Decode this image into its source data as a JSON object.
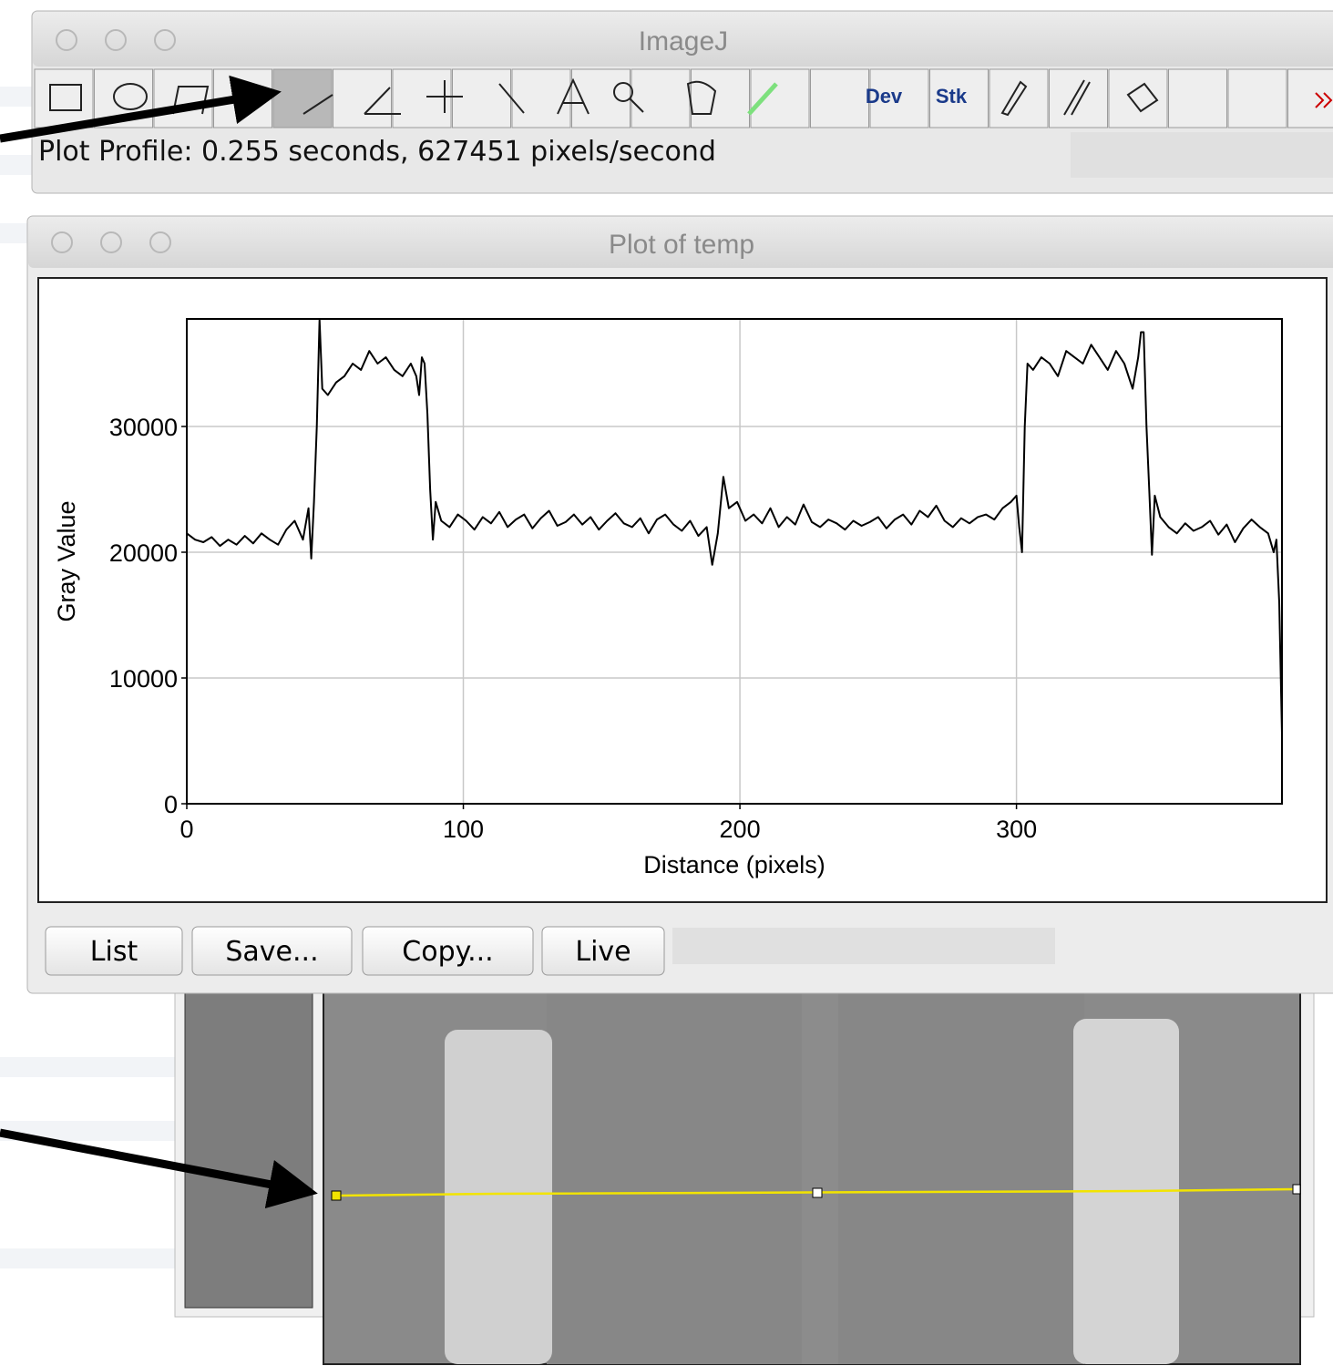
{
  "main_window": {
    "title": "ImageJ",
    "toolbar": {
      "labels": [
        "Dev",
        "Stk"
      ]
    },
    "status": "Plot Profile: 0.255 seconds, 627451 pixels/second"
  },
  "plot_window": {
    "title": "Plot of temp",
    "buttons": [
      "List",
      "Save...",
      "Copy...",
      "Live"
    ]
  },
  "chart_data": {
    "type": "line",
    "xlabel": "Distance (pixels)",
    "ylabel": "Gray Value",
    "color": "#000000",
    "grid": true,
    "xlim": [
      0,
      396
    ],
    "ylim": [
      0,
      38550
    ],
    "xticks": [
      0,
      100,
      200,
      300
    ],
    "yticks": [
      0,
      10000,
      20000,
      30000
    ],
    "x": [
      0,
      3,
      6,
      9,
      12,
      15,
      18,
      21,
      24,
      27,
      30,
      33,
      36,
      39,
      42,
      44,
      45,
      46,
      47,
      48,
      49,
      51,
      54,
      57,
      60,
      63,
      66,
      69,
      72,
      75,
      78,
      81,
      83,
      84,
      85,
      86,
      87,
      88,
      89,
      90,
      92,
      95,
      98,
      101,
      104,
      107,
      110,
      113,
      116,
      119,
      122,
      125,
      128,
      131,
      134,
      137,
      140,
      143,
      146,
      149,
      152,
      155,
      158,
      161,
      164,
      167,
      170,
      173,
      176,
      179,
      182,
      185,
      188,
      190,
      192,
      194,
      196,
      199,
      202,
      205,
      208,
      211,
      214,
      217,
      220,
      223,
      226,
      229,
      232,
      235,
      238,
      241,
      244,
      247,
      250,
      253,
      256,
      259,
      262,
      265,
      268,
      271,
      274,
      277,
      280,
      283,
      286,
      289,
      292,
      295,
      298,
      300,
      301,
      302,
      303,
      304,
      306,
      309,
      312,
      315,
      318,
      321,
      324,
      327,
      330,
      333,
      336,
      339,
      342,
      344,
      345,
      346,
      347,
      348,
      349,
      350,
      352,
      355,
      358,
      361,
      364,
      367,
      370,
      373,
      376,
      379,
      382,
      385,
      388,
      391,
      393,
      394,
      395,
      396
    ],
    "values": [
      21500,
      21000,
      20800,
      21200,
      20500,
      21000,
      20600,
      21300,
      20700,
      21500,
      21000,
      20600,
      21800,
      22500,
      21000,
      23500,
      19500,
      24000,
      30000,
      38500,
      33000,
      32500,
      33500,
      34000,
      35000,
      34500,
      36000,
      35000,
      35500,
      34500,
      34000,
      35000,
      34000,
      32500,
      35500,
      35000,
      31000,
      25000,
      21000,
      24000,
      22500,
      22000,
      23000,
      22500,
      21800,
      22800,
      22300,
      23200,
      22000,
      22600,
      23000,
      21900,
      22700,
      23300,
      22100,
      22400,
      23000,
      22200,
      22800,
      21800,
      22500,
      23100,
      22300,
      22000,
      22700,
      21500,
      22600,
      23000,
      22200,
      21700,
      22500,
      21300,
      22000,
      19000,
      21500,
      26000,
      23500,
      24000,
      22500,
      23000,
      22300,
      23500,
      22000,
      22800,
      22200,
      23800,
      22400,
      22000,
      22600,
      22300,
      21800,
      22500,
      22100,
      22400,
      22800,
      21900,
      22600,
      23000,
      22200,
      23300,
      22800,
      23700,
      22500,
      22000,
      22700,
      22300,
      22800,
      23000,
      22600,
      23500,
      24000,
      24500,
      22000,
      20000,
      30000,
      35000,
      34500,
      35500,
      35000,
      34000,
      36000,
      35500,
      35000,
      36500,
      35500,
      34500,
      36000,
      35000,
      33000,
      35500,
      37500,
      37500,
      30000,
      25000,
      19800,
      24500,
      22800,
      22000,
      21500,
      22300,
      21700,
      22000,
      22500,
      21400,
      22200,
      20800,
      21900,
      22600,
      22000,
      21500,
      20000,
      21000,
      16000,
      5500
    ]
  }
}
